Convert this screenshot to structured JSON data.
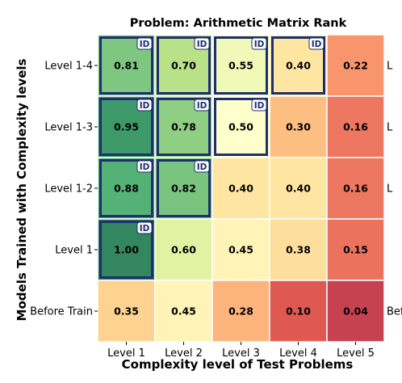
{
  "chart_data": {
    "type": "heatmap",
    "title": "Problem: Arithmetic Matrix Rank",
    "xlabel": "Complexity level of Test Problems",
    "ylabel": "Models Trained with Complexity levels",
    "x_categories": [
      "Level 1",
      "Level 2",
      "Level 3",
      "Level 4",
      "Level 5"
    ],
    "y_categories": [
      "Level 1-4",
      "Level 1-3",
      "Level 1-2",
      "Level 1",
      "Before Train"
    ],
    "values": [
      [
        0.81,
        0.7,
        0.55,
        0.4,
        0.22
      ],
      [
        0.95,
        0.78,
        0.5,
        0.3,
        0.16
      ],
      [
        0.88,
        0.82,
        0.4,
        0.4,
        0.16
      ],
      [
        1.0,
        0.6,
        0.45,
        0.38,
        0.15
      ],
      [
        0.35,
        0.45,
        0.28,
        0.1,
        0.04
      ]
    ],
    "value_labels": [
      [
        "0.81",
        "0.70",
        "0.55",
        "0.40",
        "0.22"
      ],
      [
        "0.95",
        "0.78",
        "0.50",
        "0.30",
        "0.16"
      ],
      [
        "0.88",
        "0.82",
        "0.40",
        "0.40",
        "0.16"
      ],
      [
        "1.00",
        "0.60",
        "0.45",
        "0.38",
        "0.15"
      ],
      [
        "0.35",
        "0.45",
        "0.28",
        "0.10",
        "0.04"
      ]
    ],
    "id_badge_text": "ID",
    "id_cells": [
      [
        true,
        true,
        true,
        true,
        false
      ],
      [
        true,
        true,
        true,
        false,
        false
      ],
      [
        true,
        true,
        false,
        false,
        false
      ],
      [
        true,
        false,
        false,
        false,
        false
      ],
      [
        false,
        false,
        false,
        false,
        false
      ]
    ],
    "colormap": "RdYlGn",
    "vmin": 0,
    "vmax": 1,
    "colorbar": false,
    "cropped_neighbor_tick_labels": [
      "L",
      "L",
      "L",
      "Bef"
    ]
  }
}
